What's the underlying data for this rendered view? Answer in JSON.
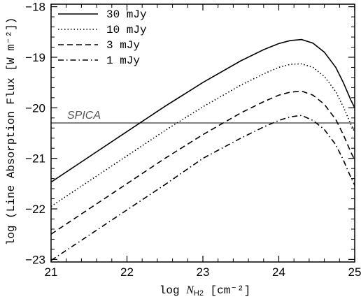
{
  "chart_data": {
    "type": "line",
    "xlabel_prefix": "log ",
    "xlabel_var": "N",
    "xlabel_sub": "H2",
    "xlabel_unit": " [cm⁻²]",
    "ylabel": "log (Line Absorption Flux [W m⁻²])",
    "xlim": [
      21,
      25
    ],
    "ylim": [
      -23.05,
      -17.95
    ],
    "xticks": [
      21,
      22,
      23,
      24,
      25
    ],
    "xtick_labels": [
      "21",
      "22",
      "23",
      "24",
      "25"
    ],
    "yticks": [
      -23,
      -22,
      -21,
      -20,
      -19,
      -18
    ],
    "ytick_labels": [
      "−23",
      "−22",
      "−21",
      "−20",
      "−19",
      "−18"
    ],
    "legend_position": "top-left",
    "grid": false,
    "series": [
      {
        "name": "30 mJy",
        "dash": "solid",
        "x": [
          21.0,
          21.5,
          22.0,
          22.5,
          23.0,
          23.5,
          23.8,
          24.0,
          24.15,
          24.3,
          24.45,
          24.6,
          24.75,
          24.85,
          24.95,
          25.0
        ],
        "y": [
          -21.47,
          -20.97,
          -20.47,
          -19.97,
          -19.5,
          -19.07,
          -18.85,
          -18.73,
          -18.67,
          -18.65,
          -18.72,
          -18.9,
          -19.2,
          -19.5,
          -19.85,
          -20.0
        ]
      },
      {
        "name": "10 mJy",
        "dash": "dotted",
        "x": [
          21.0,
          21.5,
          22.0,
          22.5,
          23.0,
          23.5,
          23.8,
          24.0,
          24.15,
          24.3,
          24.45,
          24.6,
          24.75,
          24.85,
          24.95,
          25.0
        ],
        "y": [
          -21.95,
          -21.45,
          -20.95,
          -20.45,
          -19.98,
          -19.55,
          -19.33,
          -19.2,
          -19.14,
          -19.13,
          -19.2,
          -19.38,
          -19.68,
          -19.98,
          -20.33,
          -20.48
        ]
      },
      {
        "name": "3 mJy",
        "dash": "dashed",
        "x": [
          21.0,
          21.5,
          22.0,
          22.5,
          23.0,
          23.5,
          23.8,
          24.0,
          24.15,
          24.3,
          24.45,
          24.6,
          24.75,
          24.85,
          24.95,
          25.0
        ],
        "y": [
          -22.5,
          -22.0,
          -21.5,
          -21.0,
          -20.53,
          -20.1,
          -19.88,
          -19.75,
          -19.69,
          -19.67,
          -19.75,
          -19.93,
          -20.23,
          -20.53,
          -20.88,
          -21.03
        ]
      },
      {
        "name": "1 mJy",
        "dash": "dashdot",
        "x": [
          21.0,
          21.5,
          22.0,
          22.5,
          23.0,
          23.5,
          23.8,
          24.0,
          24.15,
          24.3,
          24.45,
          24.6,
          24.75,
          24.85,
          24.95,
          25.0
        ],
        "y": [
          -23.02,
          -22.52,
          -22.02,
          -21.52,
          -21.0,
          -20.6,
          -20.38,
          -20.25,
          -20.18,
          -20.15,
          -20.25,
          -20.43,
          -20.73,
          -21.03,
          -21.38,
          -21.53
        ]
      }
    ],
    "reference_line": {
      "label": "SPICA",
      "y": -20.3
    }
  }
}
